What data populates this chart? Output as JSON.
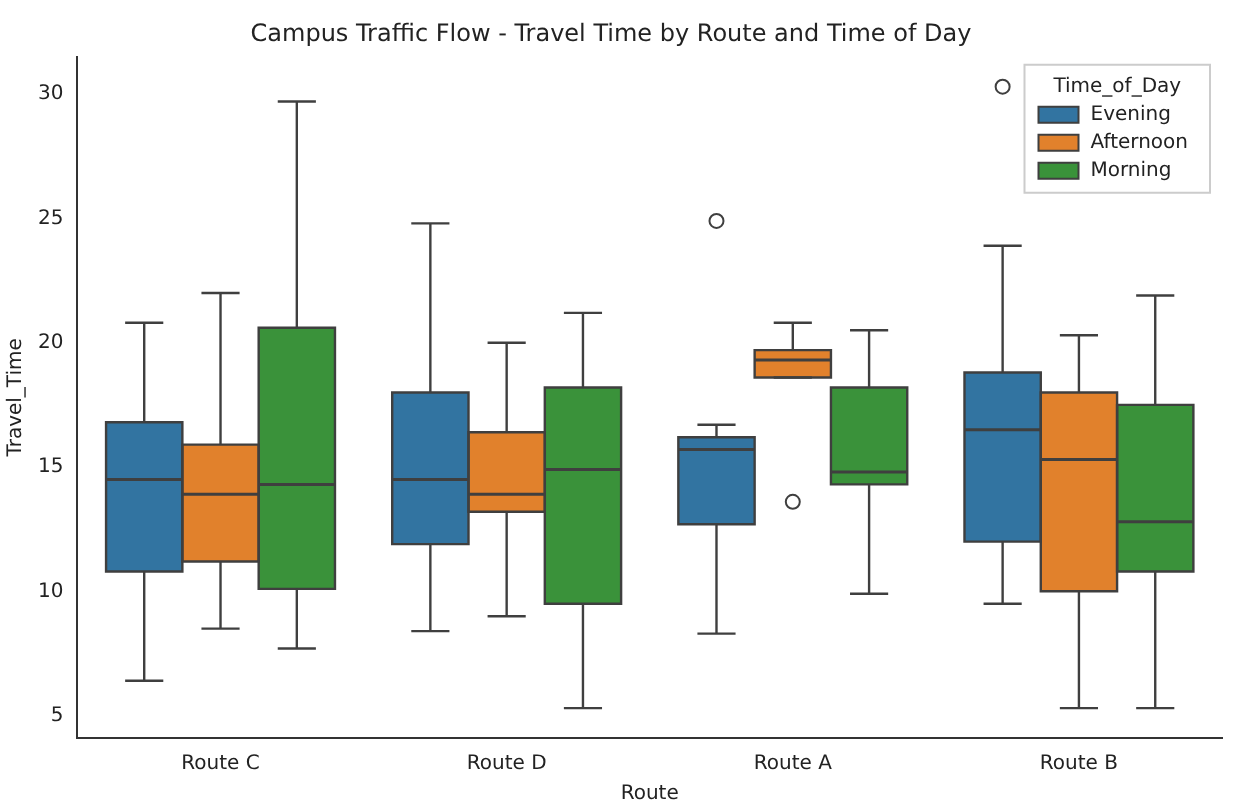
{
  "chart_data": {
    "type": "box",
    "title": "Campus Traffic Flow - Travel Time by Route and Time of Day",
    "xlabel": "Route",
    "ylabel": "Travel_Time",
    "legend_title": "Time_of_Day",
    "legend": "top right",
    "categories": [
      "Route C",
      "Route D",
      "Route A",
      "Route B"
    ],
    "ylim": [
      4.1,
      31.5
    ],
    "yticks": [
      5,
      10,
      15,
      20,
      25,
      30
    ],
    "grid": false,
    "series": [
      {
        "name": "Evening",
        "color": "#3274a1",
        "boxes": [
          {
            "low": 6.4,
            "q1": 10.8,
            "median": 14.5,
            "q3": 16.8,
            "high": 20.8
          },
          {
            "low": 8.4,
            "q1": 11.9,
            "median": 14.5,
            "q3": 18.0,
            "high": 24.8
          },
          {
            "low": 8.3,
            "q1": 12.7,
            "median": 15.7,
            "q3": 16.2,
            "high": 16.7,
            "outliers": [
              24.9
            ]
          },
          {
            "low": 9.5,
            "q1": 12.0,
            "median": 16.5,
            "q3": 18.8,
            "high": 23.9,
            "outliers": [
              30.3
            ]
          }
        ]
      },
      {
        "name": "Afternoon",
        "color": "#e1812c",
        "boxes": [
          {
            "low": 8.5,
            "q1": 11.2,
            "median": 13.9,
            "q3": 15.9,
            "high": 22.0
          },
          {
            "low": 9.0,
            "q1": 13.2,
            "median": 13.9,
            "q3": 16.4,
            "high": 20.0
          },
          {
            "low": 18.6,
            "q1": 18.6,
            "median": 19.3,
            "q3": 19.7,
            "high": 20.8,
            "outliers": [
              13.6
            ]
          },
          {
            "low": 5.3,
            "q1": 10.0,
            "median": 15.3,
            "q3": 18.0,
            "high": 20.3
          }
        ]
      },
      {
        "name": "Morning",
        "color": "#3a923a",
        "boxes": [
          {
            "low": 7.7,
            "q1": 10.1,
            "median": 14.3,
            "q3": 20.6,
            "high": 29.7
          },
          {
            "low": 5.3,
            "q1": 9.5,
            "median": 14.9,
            "q3": 18.2,
            "high": 21.2
          },
          {
            "low": 9.9,
            "q1": 14.3,
            "median": 14.8,
            "q3": 18.2,
            "high": 20.5
          },
          {
            "low": 5.3,
            "q1": 10.8,
            "median": 12.8,
            "q3": 17.5,
            "high": 21.9
          }
        ]
      }
    ]
  }
}
